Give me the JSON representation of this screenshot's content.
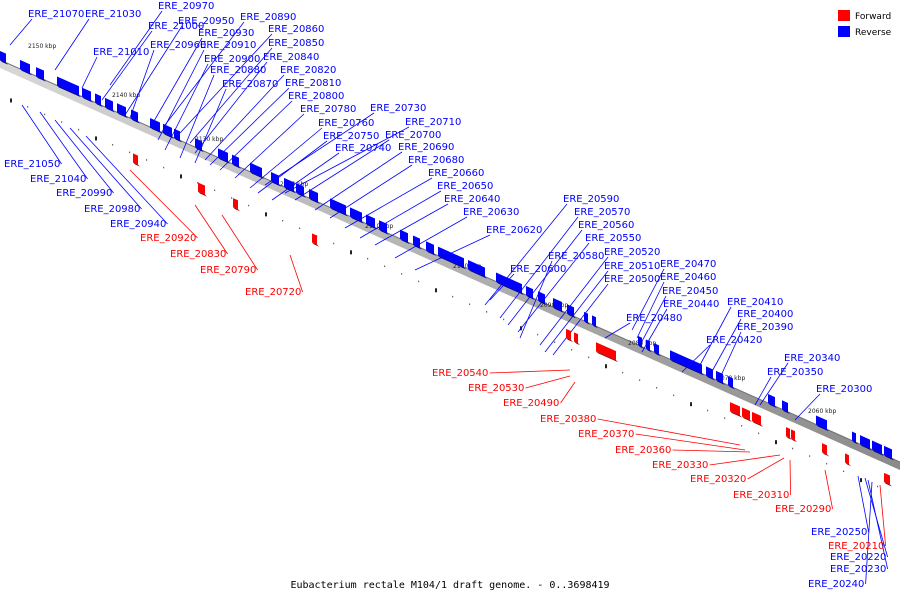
{
  "caption": "Eubacterium rectale M104/1 draft genome. - 0..3698419",
  "legend": [
    {
      "label": "Forward",
      "color": "#ff0000"
    },
    {
      "label": "Reverse",
      "color": "#0000ff"
    }
  ],
  "colors": {
    "forward": "#ff0000",
    "reverse": "#0000ff",
    "backbone": "#aaaaaa"
  },
  "ticks": [
    "2150 kbp",
    "2140 kbp",
    "2130 kbp",
    "2120 kbp",
    "2110 kbp",
    "2100 kbp",
    "2090 kbp",
    "2080 kbp",
    "2070 kbp",
    "2060 kbp"
  ],
  "genes": {
    "reverse": [
      "ERE_21070",
      "ERE_21030",
      "ERE_20970",
      "ERE_21000",
      "ERE_20950",
      "ERE_20890",
      "ERE_21010",
      "ERE_20960",
      "ERE_20930",
      "ERE_20860",
      "ERE_20910",
      "ERE_20850",
      "ERE_20900",
      "ERE_20840",
      "ERE_20880",
      "ERE_20820",
      "ERE_20870",
      "ERE_20810",
      "ERE_20800",
      "ERE_20780",
      "ERE_20730",
      "ERE_20760",
      "ERE_20710",
      "ERE_20750",
      "ERE_20700",
      "ERE_20740",
      "ERE_20690",
      "ERE_20680",
      "ERE_20660",
      "ERE_20650",
      "ERE_20640",
      "ERE_20630",
      "ERE_20620",
      "ERE_20590",
      "ERE_20570",
      "ERE_20560",
      "ERE_20550",
      "ERE_20520",
      "ERE_20580",
      "ERE_20510",
      "ERE_20600",
      "ERE_20470",
      "ERE_20500",
      "ERE_20460",
      "ERE_20450",
      "ERE_20440",
      "ERE_20480",
      "ERE_20410",
      "ERE_20400",
      "ERE_20390",
      "ERE_20420",
      "ERE_20340",
      "ERE_20350",
      "ERE_20300",
      "ERE_21050",
      "ERE_21040",
      "ERE_20990",
      "ERE_20980",
      "ERE_20940",
      "ERE_20250",
      "ERE_20220",
      "ERE_20230",
      "ERE_20240"
    ],
    "forward": [
      "ERE_20920",
      "ERE_20830",
      "ERE_20790",
      "ERE_20720",
      "ERE_20540",
      "ERE_20530",
      "ERE_20490",
      "ERE_20380",
      "ERE_20370",
      "ERE_20360",
      "ERE_20330",
      "ERE_20320",
      "ERE_20310",
      "ERE_20290",
      "ERE_20210"
    ]
  }
}
